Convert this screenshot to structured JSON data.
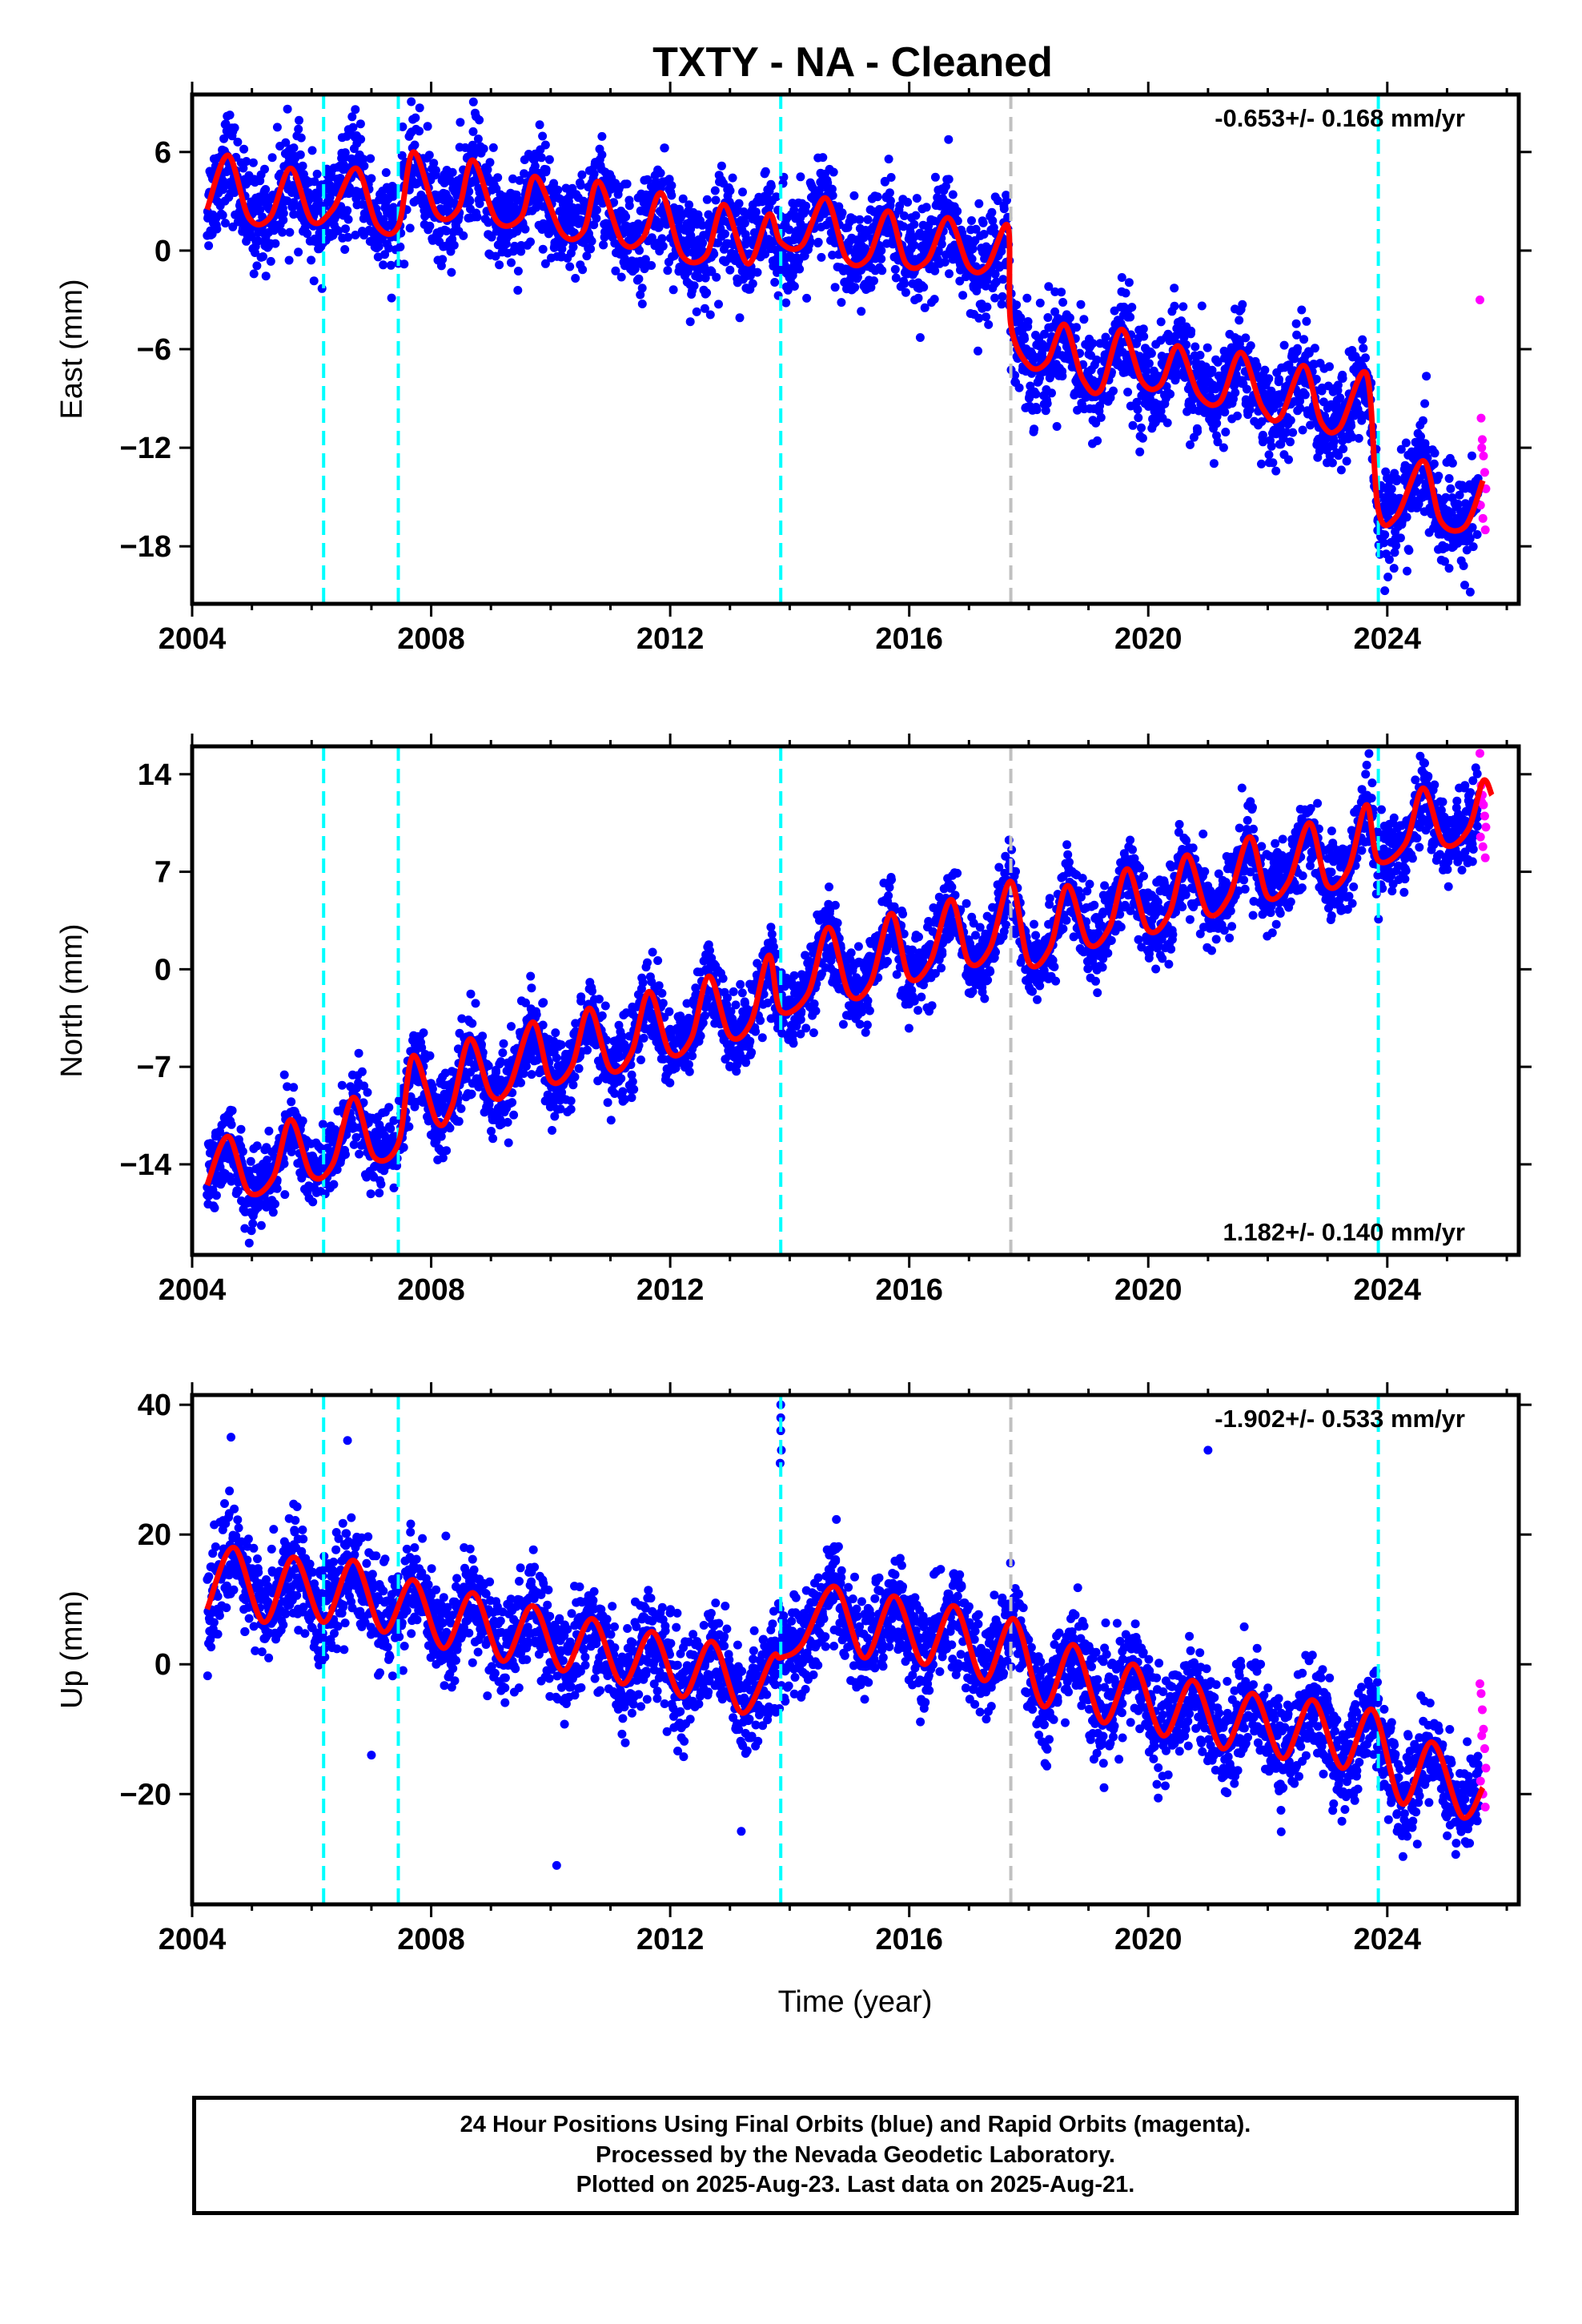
{
  "figure": {
    "title": "TXTY  - NA - Cleaned",
    "xlabel": "Time (year)"
  },
  "footer": {
    "line1": "24 Hour Positions Using Final Orbits (blue) and Rapid Orbits (magenta).",
    "line2": "Processed by the Nevada Geodetic Laboratory.",
    "line3": "Plotted on 2025-Aug-23. Last data on 2025-Aug-21."
  },
  "colors": {
    "final_orbits": "#0000ff",
    "rapid_orbits": "#ff00ff",
    "model": "#ff0000",
    "antenna_change": "#00ffff",
    "equipment_change": "#c0c0c0"
  },
  "chart_data": [
    {
      "type": "scatter",
      "component": "East",
      "ylabel": "East (mm)",
      "rate_text": "-0.653+/- 0.168 mm/yr",
      "rate_position": "top-right",
      "xlim": [
        2004.0,
        2026.2
      ],
      "ylim": [
        -21.5,
        9.5
      ],
      "xticks": [
        2004,
        2008,
        2012,
        2016,
        2020,
        2024
      ],
      "yticks": [
        -18,
        -12,
        -6,
        0,
        6
      ],
      "ytick_labels": [
        "−18",
        "−12",
        "−6",
        "0",
        "6"
      ],
      "grid": false,
      "vlines_cyan": [
        2006.2,
        2007.45,
        2013.85,
        2023.85
      ],
      "vlines_gray": [
        2017.7
      ],
      "model": {
        "x": [
          2004.25,
          2004.6,
          2004.95,
          2005.3,
          2005.65,
          2006.0,
          2006.35,
          2006.75,
          2007.1,
          2007.45,
          2007.7,
          2008.1,
          2008.45,
          2008.7,
          2009.1,
          2009.5,
          2009.75,
          2010.2,
          2010.55,
          2010.8,
          2011.2,
          2011.55,
          2011.85,
          2012.2,
          2012.6,
          2012.9,
          2013.3,
          2013.65,
          2013.85,
          2014.2,
          2014.6,
          2014.95,
          2015.3,
          2015.65,
          2015.95,
          2016.3,
          2016.65,
          2017.0,
          2017.3,
          2017.65,
          2017.7,
          2018.0,
          2018.3,
          2018.6,
          2018.9,
          2019.2,
          2019.55,
          2019.9,
          2020.2,
          2020.5,
          2020.85,
          2021.2,
          2021.55,
          2021.9,
          2022.2,
          2022.6,
          2022.9,
          2023.2,
          2023.65,
          2023.85,
          2024.15,
          2024.6,
          2024.9,
          2025.3,
          2025.6
        ],
        "y": [
          2.5,
          5.8,
          2.0,
          2.0,
          5.0,
          1.8,
          2.5,
          5.0,
          1.5,
          1.5,
          6.0,
          2.2,
          2.5,
          5.5,
          1.8,
          2.0,
          4.5,
          1.0,
          1.2,
          4.2,
          0.5,
          0.8,
          3.5,
          -0.3,
          -0.3,
          2.8,
          -0.8,
          2.2,
          0.5,
          0.3,
          3.2,
          -0.5,
          -0.5,
          2.4,
          -0.8,
          -0.6,
          2.0,
          -1.0,
          -1.0,
          1.5,
          -4.5,
          -7.0,
          -6.8,
          -4.5,
          -7.8,
          -8.5,
          -4.8,
          -8.0,
          -8.2,
          -5.8,
          -8.8,
          -9.2,
          -6.2,
          -9.5,
          -10.2,
          -7.0,
          -10.5,
          -10.8,
          -7.5,
          -15.8,
          -16.2,
          -12.8,
          -16.5,
          -16.8,
          -14.0
        ]
      },
      "rapid": {
        "x": [
          2025.55,
          2025.57,
          2025.59,
          2025.61,
          2025.63,
          2025.65,
          2025.56,
          2025.6,
          2025.64,
          2025.58
        ],
        "y": [
          -3.0,
          -10.2,
          -11.5,
          -12.5,
          -13.5,
          -14.5,
          -15.5,
          -16.3,
          -17.0,
          -12.0
        ]
      },
      "scatter_spread": 2.8
    },
    {
      "type": "scatter",
      "component": "North",
      "ylabel": "North (mm)",
      "rate_text": "1.182+/- 0.140 mm/yr",
      "rate_position": "bottom-right",
      "xlim": [
        2004.0,
        2026.2
      ],
      "ylim": [
        -20.5,
        16.0
      ],
      "xticks": [
        2004,
        2008,
        2012,
        2016,
        2020,
        2024
      ],
      "yticks": [
        -14,
        -7,
        0,
        7,
        14
      ],
      "ytick_labels": [
        "−14",
        "−7",
        "0",
        "7",
        "14"
      ],
      "grid": false,
      "vlines_cyan": [
        2006.2,
        2007.45,
        2013.85,
        2023.85
      ],
      "vlines_gray": [
        2017.7
      ],
      "model": {
        "x": [
          2004.25,
          2004.6,
          2004.95,
          2005.35,
          2005.65,
          2006.0,
          2006.35,
          2006.7,
          2007.05,
          2007.45,
          2007.7,
          2008.1,
          2008.35,
          2008.65,
          2009.0,
          2009.3,
          2009.7,
          2010.0,
          2010.35,
          2010.65,
          2011.0,
          2011.35,
          2011.65,
          2012.0,
          2012.35,
          2012.65,
          2013.0,
          2013.35,
          2013.65,
          2013.85,
          2014.3,
          2014.65,
          2015.0,
          2015.35,
          2015.7,
          2016.0,
          2016.35,
          2016.7,
          2017.0,
          2017.35,
          2017.7,
          2018.0,
          2018.35,
          2018.65,
          2019.0,
          2019.35,
          2019.65,
          2020.0,
          2020.35,
          2020.65,
          2021.0,
          2021.35,
          2021.7,
          2022.0,
          2022.35,
          2022.7,
          2023.0,
          2023.35,
          2023.65,
          2023.85,
          2024.3,
          2024.6,
          2024.95,
          2025.35,
          2025.6,
          2025.75
        ],
        "y": [
          -15.5,
          -12.0,
          -16.0,
          -15.0,
          -10.8,
          -14.8,
          -14.0,
          -9.2,
          -13.5,
          -12.5,
          -6.2,
          -11.0,
          -9.8,
          -5.0,
          -9.0,
          -8.5,
          -3.8,
          -8.0,
          -7.0,
          -2.8,
          -7.2,
          -6.0,
          -1.6,
          -6.0,
          -5.0,
          -0.5,
          -4.8,
          -3.8,
          1.0,
          -3.0,
          -1.8,
          3.0,
          -1.8,
          -1.0,
          4.0,
          -0.6,
          0.5,
          5.0,
          0.5,
          1.5,
          6.3,
          0.5,
          1.5,
          6.0,
          1.8,
          3.0,
          7.2,
          2.8,
          4.0,
          8.2,
          4.0,
          5.2,
          9.5,
          5.2,
          6.3,
          10.5,
          6.0,
          7.2,
          11.8,
          7.8,
          9.0,
          13.0,
          9.0,
          10.0,
          13.5,
          12.5
        ]
      },
      "rapid": {
        "x": [
          2025.55,
          2025.57,
          2025.59,
          2025.61,
          2025.63,
          2025.65,
          2025.56,
          2025.6,
          2025.64,
          2025.58
        ],
        "y": [
          15.5,
          13.2,
          12.5,
          11.8,
          11.0,
          10.2,
          9.5,
          8.8,
          8.0,
          12.0
        ]
      },
      "scatter_spread": 2.6
    },
    {
      "type": "scatter",
      "component": "Up",
      "ylabel": "Up (mm)",
      "rate_text": "-1.902+/- 0.533 mm/yr",
      "rate_position": "top-right",
      "xlim": [
        2004.0,
        2026.2
      ],
      "ylim": [
        -37.0,
        41.5
      ],
      "xticks": [
        2004,
        2008,
        2012,
        2016,
        2020,
        2024
      ],
      "yticks": [
        -20,
        0,
        20,
        40
      ],
      "ytick_labels": [
        "−20",
        "0",
        "20",
        "40"
      ],
      "grid": false,
      "vlines_cyan": [
        2006.2,
        2007.45,
        2013.85,
        2023.85
      ],
      "vlines_gray": [
        2017.7
      ],
      "model": {
        "x": [
          2004.25,
          2004.7,
          2005.2,
          2005.7,
          2006.2,
          2006.7,
          2007.2,
          2007.7,
          2008.2,
          2008.7,
          2009.2,
          2009.7,
          2010.2,
          2010.7,
          2011.2,
          2011.7,
          2012.2,
          2012.7,
          2013.2,
          2013.7,
          2013.85,
          2014.2,
          2014.75,
          2015.25,
          2015.75,
          2016.25,
          2016.75,
          2017.25,
          2017.75,
          2018.25,
          2018.75,
          2019.25,
          2019.75,
          2020.25,
          2020.75,
          2021.25,
          2021.75,
          2022.25,
          2022.75,
          2023.25,
          2023.75,
          2024.25,
          2024.75,
          2025.25,
          2025.6
        ],
        "y": [
          8.5,
          18.0,
          6.5,
          16.5,
          6.5,
          16.0,
          5.0,
          13.0,
          2.5,
          11.0,
          0.5,
          9.0,
          -1.0,
          7.0,
          -3.0,
          5.0,
          -5.0,
          3.5,
          -7.5,
          1.0,
          1.0,
          3.0,
          12.0,
          1.0,
          10.5,
          0.0,
          9.0,
          -2.5,
          7.0,
          -6.5,
          3.0,
          -9.0,
          0.0,
          -11.0,
          -2.5,
          -13.0,
          -4.5,
          -14.5,
          -5.5,
          -16.0,
          -7.0,
          -21.5,
          -12.0,
          -23.5,
          -19.0
        ]
      },
      "rapid": {
        "x": [
          2025.55,
          2025.57,
          2025.59,
          2025.61,
          2025.63,
          2025.65,
          2025.56,
          2025.6,
          2025.64,
          2025.58
        ],
        "y": [
          -3.0,
          -4.5,
          -7.0,
          -10.0,
          -13.0,
          -16.0,
          -18.0,
          -20.0,
          -22.0,
          -11.0
        ]
      },
      "outliers": {
        "x": [
          2004.65,
          2006.6,
          2013.85,
          2013.85,
          2013.85,
          2013.86,
          2013.84,
          2021.0,
          2010.1,
          2007.0
        ],
        "y": [
          35.0,
          34.5,
          40.0,
          38.0,
          36.0,
          33.0,
          31.0,
          33.0,
          -31.0,
          -14.0
        ]
      },
      "scatter_spread": 7.0
    }
  ]
}
